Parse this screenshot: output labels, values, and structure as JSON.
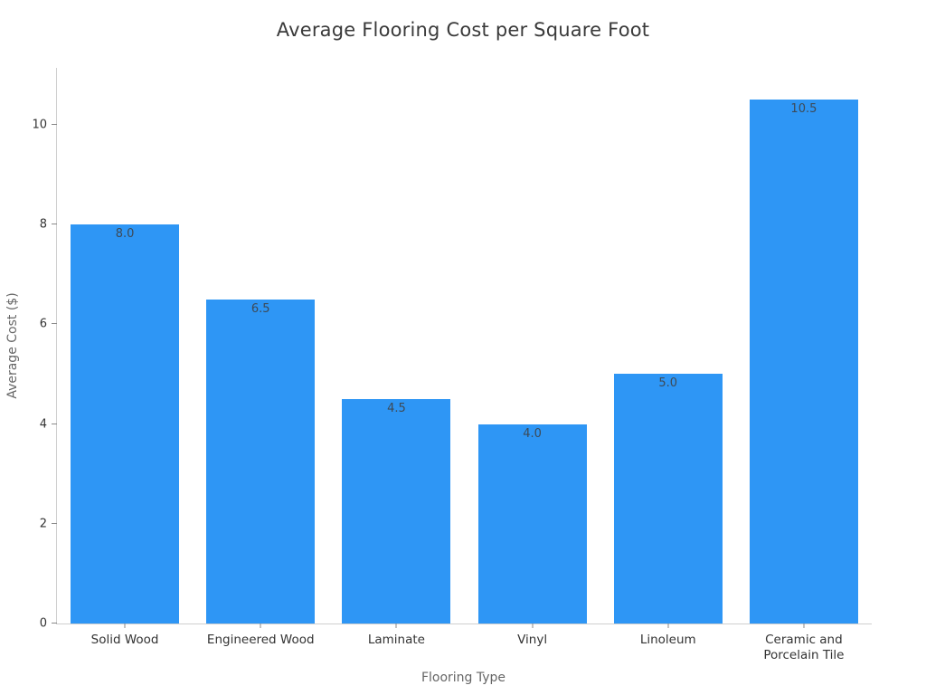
{
  "chart_data": {
    "type": "bar",
    "title": "Average Flooring Cost per Square Foot",
    "xlabel": "Flooring Type",
    "ylabel": "Average Cost ($)",
    "categories": [
      "Solid Wood",
      "Engineered Wood",
      "Laminate",
      "Vinyl",
      "Linoleum",
      "Ceramic and Porcelain Tile"
    ],
    "values": [
      8.0,
      6.5,
      4.5,
      4.0,
      5.0,
      10.5
    ],
    "value_labels": [
      "8.0",
      "6.5",
      "4.5",
      "4.0",
      "5.0",
      "10.5"
    ],
    "yticks": [
      0,
      2,
      4,
      6,
      8,
      10
    ],
    "ylim": [
      0,
      11.14
    ],
    "bar_color": "#2e96f5",
    "value_label_color": "#3d4a57",
    "grid": false,
    "legend": "none",
    "value_label_position": "inside-top",
    "bar_width_fraction": 0.8
  }
}
